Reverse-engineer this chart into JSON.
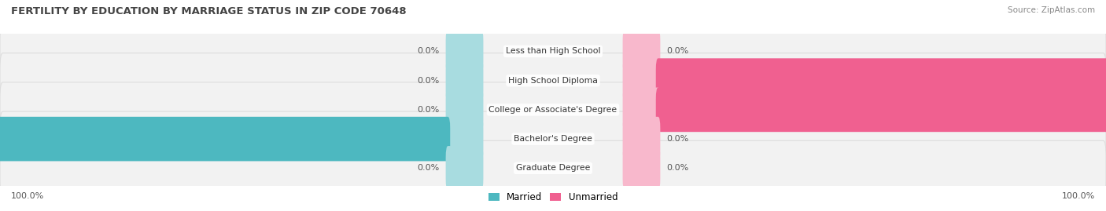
{
  "title": "FERTILITY BY EDUCATION BY MARRIAGE STATUS IN ZIP CODE 70648",
  "source": "Source: ZipAtlas.com",
  "categories": [
    "Less than High School",
    "High School Diploma",
    "College or Associate's Degree",
    "Bachelor's Degree",
    "Graduate Degree"
  ],
  "married_values": [
    0.0,
    0.0,
    0.0,
    100.0,
    0.0
  ],
  "unmarried_values": [
    0.0,
    100.0,
    100.0,
    0.0,
    0.0
  ],
  "married_color": "#4db8c0",
  "unmarried_color": "#f06090",
  "married_light_color": "#a8dce0",
  "unmarried_light_color": "#f8b8cc",
  "row_bg_color": "#f2f2f2",
  "row_border_color": "#dddddd",
  "title_color": "#444444",
  "label_color": "#333333",
  "value_color": "#555555",
  "background_color": "#ffffff",
  "figsize": [
    14.06,
    2.69
  ],
  "dpi": 100,
  "legend_married": "Married",
  "legend_unmarried": "Unmarried"
}
